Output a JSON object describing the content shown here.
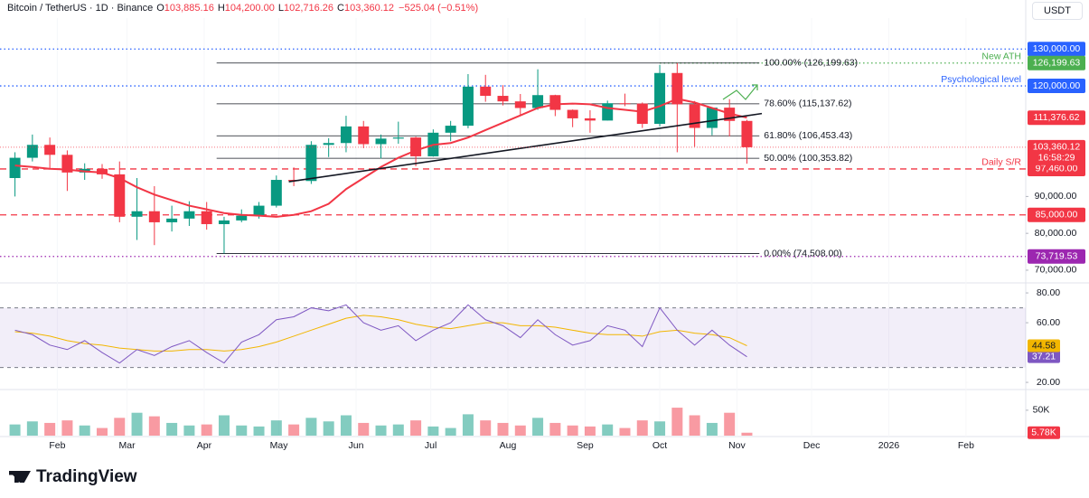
{
  "header": {
    "symbol": "Bitcoin / TetherUS · 1D · Binance",
    "fields": [
      {
        "key": "O",
        "value": "103,885.16"
      },
      {
        "key": "H",
        "value": "104,200.00"
      },
      {
        "key": "L",
        "value": "102,716.26"
      },
      {
        "key": "C",
        "value": "103,360.12"
      }
    ],
    "change": "−525.04 (−0.51%)",
    "currency": "USDT",
    "brand": "TradingView"
  },
  "chart_data": [
    {
      "type": "candlestick",
      "up_color": "#089981",
      "down_color": "#f23645",
      "x": [
        14,
        21,
        28,
        35,
        42,
        49,
        56,
        63,
        70,
        77,
        84,
        91,
        98,
        105,
        112,
        119,
        126,
        133,
        140,
        147,
        154,
        161,
        168,
        175,
        182,
        189,
        196,
        203,
        210,
        217,
        224,
        231,
        238,
        245,
        252,
        259,
        266,
        273,
        280,
        287,
        294,
        301,
        308
      ],
      "open": [
        95000,
        100500,
        104000,
        101300,
        96500,
        97500,
        96000,
        84500,
        86000,
        83000,
        84000,
        86000,
        82500,
        83500,
        84800,
        87500,
        94500,
        94200,
        104000,
        104500,
        109000,
        104200,
        105700,
        106000,
        100900,
        107300,
        109200,
        119800,
        117300,
        115800,
        114000,
        117500,
        113500,
        111200,
        110600,
        115300,
        115200,
        109700,
        123500,
        115000,
        108600,
        114100,
        110500
      ],
      "high": [
        102000,
        106800,
        106000,
        102500,
        99000,
        98800,
        99500,
        95000,
        92800,
        87500,
        88700,
        88500,
        84500,
        86500,
        88500,
        95700,
        97900,
        105000,
        105800,
        111900,
        110500,
        106800,
        110300,
        106200,
        108200,
        110500,
        123200,
        123000,
        120200,
        117800,
        124500,
        117600,
        113600,
        113400,
        116000,
        117900,
        115500,
        125700,
        126200,
        115900,
        114000,
        116400,
        110800
      ],
      "low": [
        90000,
        99500,
        97700,
        91500,
        94500,
        94800,
        83000,
        78200,
        76800,
        80500,
        82000,
        81000,
        74500,
        83000,
        84000,
        87000,
        92800,
        93400,
        100700,
        102000,
        103100,
        100300,
        104300,
        98200,
        100800,
        105000,
        108500,
        115700,
        114700,
        112000,
        113500,
        111800,
        108800,
        107300,
        110600,
        114500,
        108600,
        109000,
        102000,
        103500,
        106600,
        106300,
        98900
      ],
      "close": [
        100500,
        104000,
        101300,
        96500,
        97500,
        96000,
        84500,
        86000,
        83000,
        84000,
        86000,
        82500,
        83500,
        84800,
        87500,
        94500,
        94200,
        104000,
        104500,
        109000,
        104200,
        105700,
        106000,
        100900,
        107300,
        109200,
        119800,
        117300,
        115800,
        114000,
        117500,
        113500,
        111200,
        110600,
        115300,
        115200,
        109700,
        123500,
        115000,
        108600,
        114100,
        110500,
        103360.12
      ],
      "sma": {
        "color": "#f23645",
        "values": [
          98400,
          98000,
          97500,
          97300,
          96800,
          96500,
          95000,
          92500,
          90500,
          89000,
          87500,
          86500,
          85500,
          85000,
          84800,
          84500,
          85000,
          86000,
          88000,
          92000,
          95000,
          98000,
          100500,
          102500,
          104000,
          104500,
          106000,
          108000,
          110000,
          112000,
          114000,
          115000,
          115200,
          115000,
          114000,
          113500,
          113000,
          114500,
          116500,
          115500,
          114000,
          112500,
          111376.62
        ],
        "badge": "111,376.62"
      },
      "ylim": [
        66800,
        138400
      ],
      "yticks": [
        {
          "value": 70000,
          "label": "70,000.00"
        },
        {
          "value": 80000,
          "label": "80,000.00"
        },
        {
          "value": 90000,
          "label": "90,000.00"
        }
      ],
      "xlim": [
        9.8,
        420
      ],
      "xticks": [
        {
          "value": 31,
          "label": "Feb"
        },
        {
          "value": 59,
          "label": "Mar"
        },
        {
          "value": 90,
          "label": "Apr"
        },
        {
          "value": 120,
          "label": "May"
        },
        {
          "value": 151,
          "label": "Jun"
        },
        {
          "value": 181,
          "label": "Jul"
        },
        {
          "value": 212,
          "label": "Aug"
        },
        {
          "value": 243,
          "label": "Sep"
        },
        {
          "value": 273,
          "label": "Oct"
        },
        {
          "value": 304,
          "label": "Nov"
        },
        {
          "value": 334,
          "label": "Dec"
        },
        {
          "value": 365,
          "label": "2026"
        },
        {
          "value": 396,
          "label": "Feb"
        }
      ],
      "levels": [
        {
          "value": 130000,
          "label": "130,000.00",
          "color": "#2962ff",
          "style": "dotted"
        },
        {
          "value": 126199.63,
          "label": "126,199.63",
          "color": "#4caf50",
          "style": "dotted",
          "note": "New ATH",
          "from": 273
        },
        {
          "value": 120000,
          "label": "120,000.00",
          "color": "#2962ff",
          "style": "dotted",
          "note": "Psychological level"
        },
        {
          "value": 97460,
          "label": "97,460.00",
          "color": "#f23645",
          "style": "dashed",
          "note": "Daily S/R"
        },
        {
          "value": 85000,
          "label": "85,000.00",
          "color": "#f23645",
          "style": "dashed"
        },
        {
          "value": 73719.53,
          "label": "73,719.53",
          "color": "#9c27b0",
          "style": "dotted"
        }
      ],
      "fib": {
        "x": [
          95,
          313
        ],
        "levels": [
          {
            "value": 126199.63,
            "label": "100.00% (126,199.63)"
          },
          {
            "value": 115137.62,
            "label": "78.60% (115,137.62)"
          },
          {
            "value": 106453.43,
            "label": "61.80% (106,453.43)"
          },
          {
            "value": 100353.82,
            "label": "50.00% (100,353.82)"
          },
          {
            "value": 74508,
            "label": "0.00% (74,508.00)"
          }
        ]
      },
      "trendline": {
        "x": [
          124,
          314
        ],
        "y": [
          94000,
          112500
        ]
      },
      "last_price": {
        "value": 103360.12,
        "label": "103,360.12",
        "countdown": "16:58:29"
      }
    },
    {
      "type": "line",
      "ylim": [
        15.8,
        85.5
      ],
      "band": [
        30,
        70
      ],
      "yticks": [
        {
          "value": 20,
          "label": "20.00"
        },
        {
          "value": 60,
          "label": "60.00"
        },
        {
          "value": 80,
          "label": "80.00"
        }
      ],
      "series": [
        {
          "color": "#7e57c2",
          "values": [
            55,
            52,
            45,
            42,
            48,
            40,
            33,
            42,
            38,
            44,
            48,
            40,
            33,
            47,
            52,
            62,
            64,
            70,
            68,
            72,
            60,
            55,
            58,
            48,
            55,
            60,
            72,
            62,
            58,
            50,
            62,
            52,
            45,
            48,
            58,
            55,
            44,
            70,
            55,
            45,
            55,
            45,
            37.21
          ]
        },
        {
          "color": "#f2b600",
          "values": [
            54,
            53,
            51,
            48,
            46,
            45,
            43,
            42,
            41,
            41,
            42,
            42,
            41,
            42,
            44,
            47,
            51,
            55,
            59,
            63,
            65,
            64,
            62,
            59,
            57,
            56,
            58,
            60,
            60,
            58,
            58,
            57,
            55,
            53,
            52,
            52,
            51,
            54,
            55,
            53,
            52,
            50,
            44.58
          ]
        }
      ]
    },
    {
      "type": "bar",
      "ylim": [
        0,
        88900
      ],
      "yticks": [
        {
          "value": 50000,
          "label": "50K"
        }
      ],
      "values": [
        22000,
        28000,
        25000,
        30000,
        20000,
        15000,
        35000,
        45000,
        38000,
        25000,
        20000,
        22000,
        40000,
        20000,
        18000,
        30000,
        22000,
        35000,
        28000,
        40000,
        25000,
        20000,
        22000,
        30000,
        18000,
        15000,
        42000,
        30000,
        25000,
        20000,
        35000,
        25000,
        20000,
        18000,
        22000,
        15000,
        30000,
        28000,
        55000,
        40000,
        25000,
        45000,
        5780
      ],
      "badge": {
        "value": 5780,
        "label": "5.78K"
      }
    }
  ]
}
